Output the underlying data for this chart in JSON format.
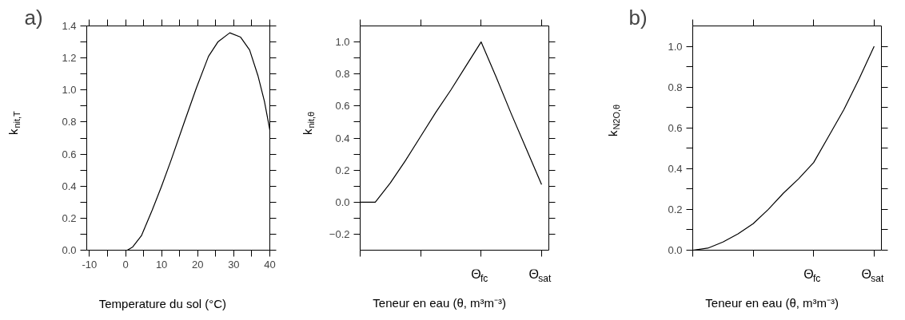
{
  "chart_data": [
    {
      "type": "line",
      "title": "a)",
      "xlabel": "Temperature du sol (°C)",
      "ylabel": "k$_{nit,T}$",
      "xlim": [
        -10.75,
        40
      ],
      "ylim": [
        0,
        1.4
      ],
      "xticks": [
        -10,
        {
          "value": -5,
          "label": null
        },
        0,
        {
          "value": 5,
          "label": null
        },
        10,
        {
          "value": 15,
          "label": null
        },
        20,
        {
          "value": 25,
          "label": null
        },
        30,
        {
          "value": 35,
          "label": null
        },
        40
      ],
      "yticks": [
        {
          "value": 0.0,
          "label": "0.0"
        },
        {
          "value": 0.1,
          "label": null
        },
        {
          "value": 0.2,
          "label": "0.2"
        },
        {
          "value": 0.3,
          "label": null
        },
        {
          "value": 0.4,
          "label": "0.4"
        },
        {
          "value": 0.5,
          "label": null
        },
        {
          "value": 0.6,
          "label": "0.6"
        },
        {
          "value": 0.7,
          "label": null
        },
        {
          "value": 0.8,
          "label": "0.8"
        },
        {
          "value": 0.9,
          "label": null
        },
        {
          "value": 1.0,
          "label": "1.0"
        },
        {
          "value": 1.1,
          "label": null
        },
        {
          "value": 1.2,
          "label": "1.2"
        },
        {
          "value": 1.3,
          "label": null
        },
        {
          "value": 1.4,
          "label": "1.4"
        }
      ],
      "grid": false,
      "series": [
        {
          "color": "#000000",
          "x": [
            0.5,
            2,
            4.4,
            7.4,
            10,
            12.6,
            16.3,
            19.6,
            23,
            25.6,
            28.9,
            31.9,
            34.4,
            36.7,
            38.5,
            40
          ],
          "values": [
            0,
            0.02,
            0.09,
            0.25,
            0.4,
            0.56,
            0.8,
            1.01,
            1.21,
            1.3,
            1.357,
            1.33,
            1.25,
            1.09,
            0.93,
            0.75
          ]
        }
      ]
    },
    {
      "type": "line",
      "xlabel": "Teneur en eau (θ, m³m⁻³)",
      "ylabel": "k$_{nit,θ}$",
      "ylim": [
        -0.3,
        1.1
      ],
      "categories": [
        null,
        null,
        null,
        null,
        null,
        null,
        null,
        null,
        "Θ$_{fc}$",
        null,
        null,
        null,
        "Θ$_{sat}$"
      ],
      "yticks": [
        {
          "value": -0.2,
          "label": "−0.2"
        },
        {
          "value": -0.1,
          "label": null
        },
        {
          "value": 0.0,
          "label": "0.0"
        },
        {
          "value": 0.1,
          "label": null
        },
        {
          "value": 0.2,
          "label": "0.2"
        },
        {
          "value": 0.3,
          "label": null
        },
        {
          "value": 0.4,
          "label": "0.4"
        },
        {
          "value": 0.5,
          "label": null
        },
        {
          "value": 0.6,
          "label": "0.6"
        },
        {
          "value": 0.7,
          "label": null
        },
        {
          "value": 0.8,
          "label": "0.8"
        },
        {
          "value": 0.9,
          "label": null
        },
        {
          "value": 1.0,
          "label": "1.0"
        }
      ],
      "grid": false,
      "series": [
        {
          "color": "#000000",
          "values": [
            0,
            0,
            0.12,
            0.26,
            0.41,
            0.56,
            0.7,
            0.85,
            1.0,
            0.78,
            0.55,
            0.33,
            0.11
          ]
        }
      ]
    },
    {
      "type": "line",
      "title": "b)",
      "xlabel": "Teneur en eau (θ, m³m⁻³)",
      "ylabel": "k$_{N2O,θ}$",
      "ylim": [
        0,
        1.1
      ],
      "categories": [
        null,
        null,
        null,
        null,
        null,
        null,
        null,
        null,
        "Θ$_{fc}$",
        null,
        null,
        null,
        "Θ$_{sat}$"
      ],
      "yticks": [
        {
          "value": 0.0,
          "label": "0.0"
        },
        {
          "value": 0.1,
          "label": null
        },
        {
          "value": 0.2,
          "label": "0.2"
        },
        {
          "value": 0.3,
          "label": null
        },
        {
          "value": 0.4,
          "label": "0.4"
        },
        {
          "value": 0.5,
          "label": null
        },
        {
          "value": 0.6,
          "label": "0.6"
        },
        {
          "value": 0.7,
          "label": null
        },
        {
          "value": 0.8,
          "label": "0.8"
        },
        {
          "value": 0.9,
          "label": null
        },
        {
          "value": 1.0,
          "label": "1.0"
        }
      ],
      "grid": false,
      "series": [
        {
          "color": "#000000",
          "values": [
            0,
            0.01,
            0.04,
            0.08,
            0.13,
            0.2,
            0.28,
            0.35,
            0.43,
            0.56,
            0.69,
            0.84,
            1.0
          ]
        }
      ]
    }
  ]
}
